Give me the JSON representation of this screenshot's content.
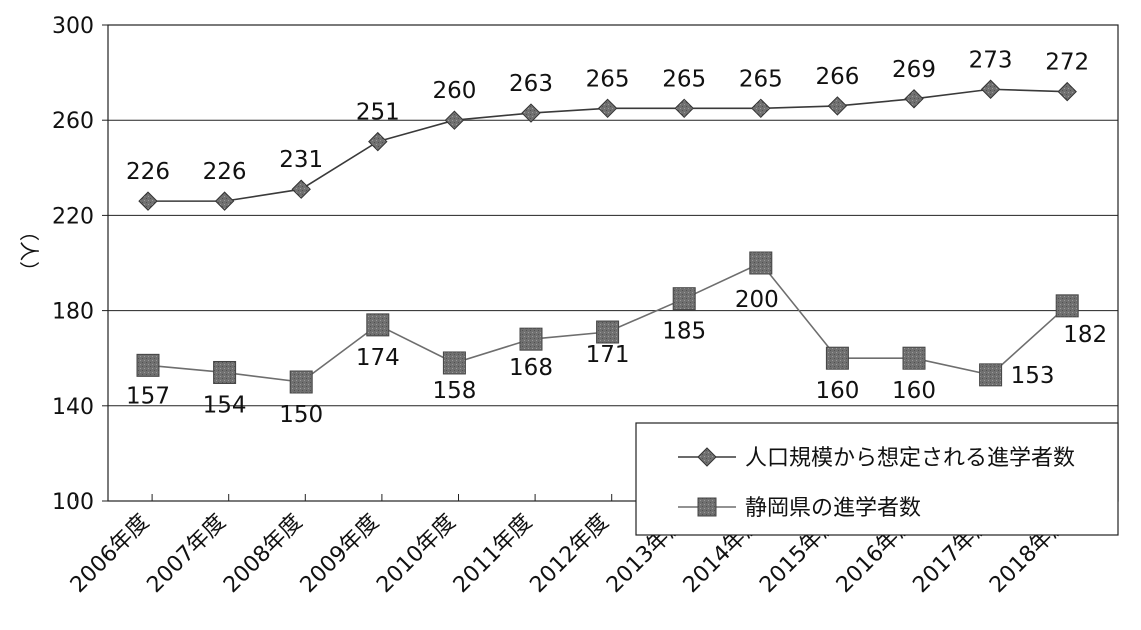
{
  "chart_data": {
    "type": "line",
    "title": "",
    "xlabel": "",
    "ylabel": "（人）",
    "ylim": [
      100,
      300
    ],
    "yticks": [
      100,
      140,
      180,
      220,
      260,
      300
    ],
    "grid": true,
    "legend_position": "bottom-right",
    "categories": [
      "2006年度",
      "2007年度",
      "2008年度",
      "2009年度",
      "2010年度",
      "2011年度",
      "2012年度",
      "2013年度",
      "2014年度",
      "2015年度",
      "2016年度",
      "2017年度",
      "2018年度"
    ],
    "series": [
      {
        "name": "人口規模から想定される進学者数",
        "marker": "diamond",
        "color": "#3a3a3a",
        "values": [
          226,
          226,
          231,
          251,
          260,
          263,
          265,
          265,
          265,
          266,
          269,
          273,
          272
        ]
      },
      {
        "name": "静岡県の進学者数",
        "marker": "square",
        "color": "#6e6e6e",
        "values": [
          157,
          154,
          150,
          174,
          158,
          168,
          171,
          185,
          200,
          160,
          160,
          153,
          182
        ]
      }
    ]
  }
}
